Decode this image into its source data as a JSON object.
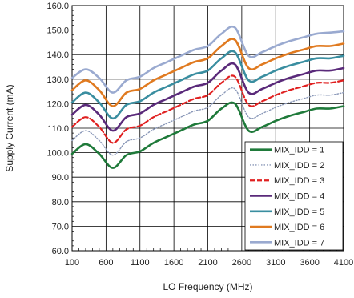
{
  "chart_data": {
    "type": "line",
    "title": "",
    "xlabel": "LO Frequency (MHz)",
    "ylabel": "Supply Current (mA)",
    "xlim": [
      100,
      4100
    ],
    "ylim": [
      60,
      160
    ],
    "x_ticks": [
      100,
      600,
      1100,
      1600,
      2100,
      2600,
      3100,
      3600,
      4100
    ],
    "y_ticks": [
      "60.0",
      "70.0",
      "80.0",
      "90.0",
      "100.0",
      "110.0",
      "120.0",
      "130.0",
      "140.0",
      "150.0",
      "160.0"
    ],
    "grid": true,
    "legend_position": "lower-right",
    "x": [
      100,
      300,
      500,
      700,
      900,
      1100,
      1300,
      1500,
      1700,
      1900,
      2100,
      2300,
      2500,
      2700,
      2900,
      3100,
      3300,
      3500,
      3700,
      3900,
      4100
    ],
    "series": [
      {
        "name": "MIX_IDD = 1",
        "color": "#1f7a3a",
        "dash": "solid",
        "values": [
          99.5,
          103.5,
          99.5,
          93.8,
          99.0,
          100.5,
          104.0,
          106.5,
          109.0,
          111.5,
          113.0,
          118.0,
          120.0,
          109.0,
          110.5,
          113.0,
          115.0,
          116.5,
          118.0,
          118.0,
          119.0
        ]
      },
      {
        "name": "MIX_IDD = 2",
        "color": "#8a98b8",
        "dash": "dotted",
        "values": [
          105.0,
          109.0,
          105.0,
          99.0,
          104.5,
          106.0,
          109.5,
          112.0,
          114.5,
          117.0,
          118.5,
          123.5,
          126.0,
          114.5,
          116.0,
          118.5,
          120.5,
          122.0,
          123.5,
          123.5,
          124.5
        ]
      },
      {
        "name": "MIX_IDD = 3",
        "color": "#e02020",
        "dash": "dashed",
        "values": [
          110.5,
          114.5,
          110.5,
          104.0,
          109.5,
          111.0,
          114.5,
          117.0,
          119.5,
          122.0,
          123.5,
          128.5,
          131.0,
          119.5,
          121.0,
          123.5,
          125.5,
          127.0,
          128.5,
          128.5,
          129.5
        ]
      },
      {
        "name": "MIX_IDD = 4",
        "color": "#5a2a7a",
        "dash": "solid",
        "values": [
          115.5,
          119.5,
          115.5,
          109.0,
          114.5,
          116.0,
          119.5,
          122.0,
          124.5,
          127.0,
          128.5,
          133.5,
          136.0,
          124.5,
          126.0,
          128.5,
          130.5,
          132.0,
          133.5,
          133.5,
          134.5
        ]
      },
      {
        "name": "MIX_IDD = 5",
        "color": "#3a8ea0",
        "dash": "solid",
        "values": [
          120.5,
          124.5,
          120.5,
          114.0,
          119.5,
          121.0,
          124.5,
          127.0,
          129.5,
          132.0,
          133.5,
          138.5,
          141.0,
          129.5,
          131.0,
          133.5,
          135.5,
          137.0,
          138.5,
          138.5,
          139.5
        ]
      },
      {
        "name": "MIX_IDD = 6",
        "color": "#e07a20",
        "dash": "solid",
        "values": [
          125.5,
          129.5,
          125.5,
          119.0,
          124.5,
          126.0,
          129.5,
          132.0,
          134.5,
          137.0,
          138.5,
          143.5,
          146.0,
          134.5,
          136.0,
          138.5,
          140.5,
          142.0,
          143.5,
          143.5,
          144.5
        ]
      },
      {
        "name": "MIX_IDD = 7",
        "color": "#9aaad0",
        "dash": "solid",
        "values": [
          130.5,
          134.0,
          130.5,
          124.5,
          129.5,
          131.0,
          134.5,
          137.0,
          139.5,
          142.0,
          143.5,
          148.5,
          151.0,
          139.5,
          141.0,
          143.5,
          145.5,
          147.0,
          148.5,
          149.0,
          149.5
        ]
      }
    ]
  }
}
